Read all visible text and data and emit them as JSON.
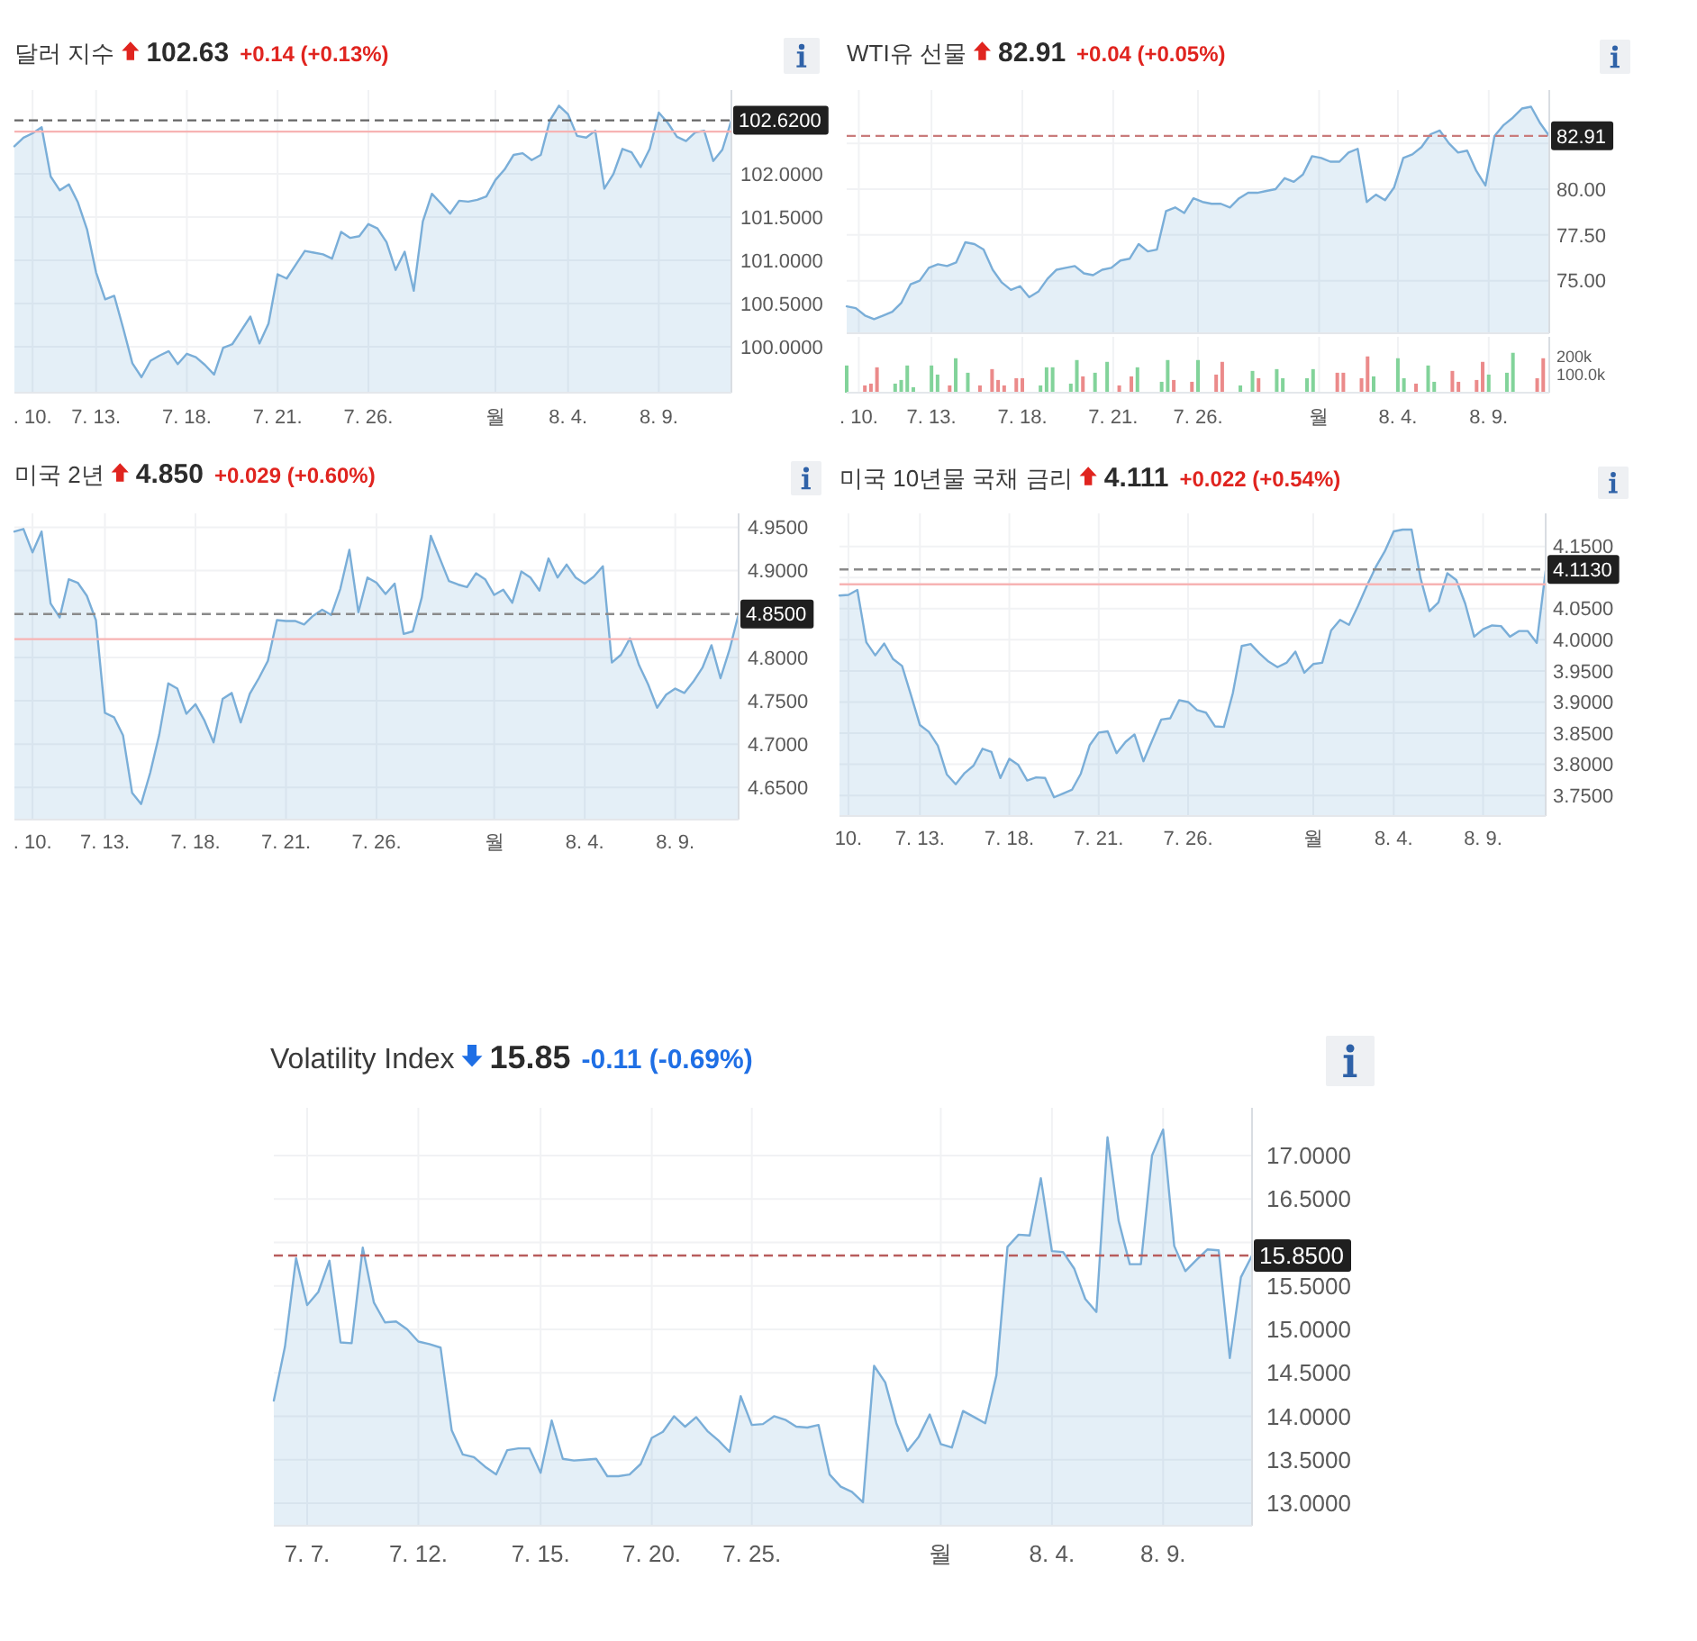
{
  "chart_data": [
    {
      "type": "area",
      "title": "달러 지수",
      "subtitle": "102.63",
      "annotations": [
        "+0.14 (+0.13%)"
      ],
      "color": "#7aaed8",
      "grid": true,
      "ylim": [
        99.47,
        102.97
      ],
      "categories": [
        null,
        null,
        ". 10.",
        null,
        null,
        null,
        null,
        null,
        null,
        "7. 13.",
        null,
        null,
        null,
        null,
        null,
        null,
        null,
        null,
        null,
        "7. 18.",
        null,
        null,
        null,
        null,
        null,
        null,
        null,
        null,
        null,
        "7. 21.",
        null,
        null,
        null,
        null,
        null,
        null,
        null,
        null,
        null,
        "7. 26.",
        null,
        null,
        null,
        null,
        null,
        null,
        null,
        null,
        null,
        null,
        null,
        null,
        null,
        "월",
        null,
        null,
        null,
        null,
        null,
        null,
        null,
        "8. 4.",
        null,
        null,
        null,
        null,
        null,
        null,
        null,
        null,
        null,
        "8. 9.",
        null,
        null,
        null,
        null,
        null,
        null,
        null,
        null
      ],
      "yticks": [
        {
          "value": 100,
          "label": "100.0000"
        },
        {
          "value": 100.5,
          "label": "100.5000"
        },
        {
          "value": 101,
          "label": "101.0000"
        },
        {
          "value": 101.5,
          "label": "101.5000"
        },
        {
          "value": 102,
          "label": "102.0000"
        }
      ],
      "ref_lines": [
        {
          "axis": "y",
          "value": 102.62,
          "label": "102.6200",
          "color": "#666666",
          "line_style": "dashed"
        },
        {
          "axis": "y",
          "value": 102.49,
          "color": "#f7b3b3",
          "line_style": "solid"
        }
      ],
      "values": [
        102.32,
        102.42,
        102.47,
        102.54,
        101.97,
        101.81,
        101.88,
        101.67,
        101.36,
        100.86,
        100.55,
        100.59,
        100.21,
        99.81,
        99.65,
        99.84,
        99.9,
        99.95,
        99.8,
        99.92,
        99.88,
        99.79,
        99.68,
        99.99,
        100.03,
        100.19,
        100.35,
        100.04,
        100.27,
        100.84,
        100.79,
        100.95,
        101.11,
        101.09,
        101.07,
        101.02,
        101.33,
        101.26,
        101.28,
        101.42,
        101.37,
        101.21,
        100.89,
        101.1,
        100.65,
        101.45,
        101.77,
        101.66,
        101.54,
        101.69,
        101.68,
        101.7,
        101.74,
        101.93,
        102.05,
        102.22,
        102.24,
        102.16,
        102.22,
        102.62,
        102.79,
        102.69,
        102.44,
        102.42,
        102.5,
        101.83,
        102.0,
        102.29,
        102.25,
        102.08,
        102.29,
        102.71,
        102.59,
        102.43,
        102.38,
        102.48,
        102.5,
        102.15,
        102.28,
        102.62
      ]
    },
    {
      "type": "area",
      "title": "WTI유 선물",
      "subtitle": "82.91",
      "annotations": [
        "+0.04 (+0.05%)"
      ],
      "color": "#7aaed8",
      "grid": true,
      "tick_labels": "y",
      "ylim": [
        72.13,
        85.41
      ],
      "categories": [
        null,
        null,
        null,
        null,
        null,
        null,
        null,
        null,
        null,
        null,
        null,
        null,
        null,
        null,
        null,
        null,
        null,
        null,
        null,
        null,
        null,
        null,
        null,
        null,
        null,
        null,
        null,
        null,
        null,
        null,
        null,
        null,
        null,
        null,
        null,
        null,
        null,
        null,
        null,
        null,
        null,
        null,
        null,
        null,
        null,
        null,
        null,
        null,
        null,
        null,
        null,
        null,
        null,
        null,
        null,
        null,
        null,
        null,
        null,
        null,
        null,
        null,
        null,
        null,
        null,
        null,
        null,
        null,
        null,
        null,
        null,
        null,
        null,
        null,
        null,
        null,
        null,
        null
      ],
      "yticks": [
        {
          "value": 75,
          "label": "75.00"
        },
        {
          "value": 77.5,
          "label": "77.50"
        },
        {
          "value": 80,
          "label": "80.00"
        },
        {
          "value": 82.5,
          "label": null
        }
      ],
      "ref_lines": [
        {
          "axis": "y",
          "value": 82.91,
          "label": "82.91",
          "color": "#c97b7b",
          "line_style": "dashed"
        }
      ],
      "values": [
        73.6,
        73.5,
        73.1,
        72.9,
        73.1,
        73.3,
        73.8,
        74.8,
        75.0,
        75.7,
        75.9,
        75.8,
        76.0,
        77.1,
        77.0,
        76.7,
        75.6,
        74.9,
        74.5,
        74.7,
        74.1,
        74.4,
        75.1,
        75.6,
        75.7,
        75.8,
        75.4,
        75.3,
        75.6,
        75.7,
        76.1,
        76.2,
        77.0,
        76.6,
        76.7,
        78.8,
        79.0,
        78.7,
        79.5,
        79.3,
        79.2,
        79.2,
        79.0,
        79.5,
        79.8,
        79.8,
        79.9,
        80.0,
        80.6,
        80.4,
        80.8,
        81.8,
        81.7,
        81.5,
        81.5,
        82.0,
        82.2,
        79.3,
        79.7,
        79.4,
        80.1,
        81.7,
        81.9,
        82.3,
        83.0,
        83.2,
        82.5,
        82.0,
        82.1,
        81.0,
        80.2,
        82.9,
        83.5,
        83.9,
        84.4,
        84.5,
        83.6,
        82.9
      ]
    },
    {
      "type": "bar",
      "grid": "x",
      "ylim": [
        0,
        308000
      ],
      "categories": [
        null,
        null,
        ". 10.",
        null,
        null,
        null,
        null,
        null,
        null,
        null,
        null,
        null,
        null,
        null,
        "7. 13.",
        null,
        null,
        null,
        null,
        null,
        null,
        null,
        null,
        null,
        null,
        null,
        null,
        null,
        null,
        "7. 18.",
        null,
        null,
        null,
        null,
        null,
        null,
        null,
        null,
        null,
        null,
        null,
        null,
        null,
        null,
        "7. 21.",
        null,
        null,
        null,
        null,
        null,
        null,
        null,
        null,
        null,
        null,
        null,
        null,
        null,
        "7. 26.",
        null,
        null,
        null,
        null,
        null,
        null,
        null,
        null,
        null,
        null,
        null,
        null,
        null,
        null,
        null,
        null,
        null,
        null,
        null,
        "월",
        null,
        null,
        null,
        null,
        null,
        null,
        null,
        null,
        null,
        null,
        null,
        null,
        "8. 4.",
        null,
        null,
        null,
        null,
        null,
        null,
        null,
        null,
        null,
        null,
        null,
        null,
        null,
        null,
        "8. 9.",
        null,
        null,
        null,
        null,
        null,
        null,
        null,
        null,
        null,
        null
      ],
      "yticks": [
        {
          "value": 100000,
          "label": "100.0k"
        },
        {
          "value": 200000,
          "label": "200k"
        }
      ],
      "values": [
        150000,
        null,
        null,
        40000,
        50000,
        140000,
        null,
        null,
        50000,
        70000,
        150000,
        30000,
        null,
        null,
        150000,
        100000,
        null,
        40000,
        190000,
        null,
        110000,
        null,
        40000,
        null,
        130000,
        70000,
        40000,
        null,
        80000,
        80000,
        null,
        null,
        40000,
        140000,
        140000,
        null,
        null,
        50000,
        180000,
        90000,
        null,
        110000,
        null,
        170000,
        null,
        40000,
        null,
        90000,
        140000,
        null,
        null,
        null,
        60000,
        180000,
        70000,
        null,
        null,
        60000,
        180000,
        null,
        null,
        100000,
        170000,
        null,
        null,
        40000,
        null,
        120000,
        80000,
        null,
        null,
        130000,
        80000,
        null,
        null,
        null,
        80000,
        130000,
        null,
        null,
        null,
        110000,
        110000,
        null,
        null,
        80000,
        200000,
        90000,
        null,
        null,
        null,
        190000,
        80000,
        null,
        50000,
        null,
        150000,
        60000,
        null,
        null,
        120000,
        60000,
        null,
        null,
        70000,
        170000,
        100000,
        null,
        null,
        110000,
        220000,
        null,
        null,
        null,
        80000,
        190000,
        null
      ],
      "colors": [
        "#82d39a",
        null,
        null,
        "#eb8a8a",
        "#eb8a8a",
        "#eb8a8a",
        null,
        null,
        "#82d39a",
        "#82d39a",
        "#82d39a",
        "#82d39a",
        null,
        null,
        "#82d39a",
        "#82d39a",
        null,
        "#eb8a8a",
        "#82d39a",
        null,
        "#82d39a",
        null,
        "#eb8a8a",
        null,
        "#eb8a8a",
        "#eb8a8a",
        "#eb8a8a",
        null,
        "#eb8a8a",
        "#eb8a8a",
        null,
        null,
        "#82d39a",
        "#82d39a",
        "#82d39a",
        null,
        null,
        "#82d39a",
        "#82d39a",
        "#eb8a8a",
        null,
        "#82d39a",
        null,
        "#82d39a",
        null,
        "#eb8a8a",
        null,
        "#eb8a8a",
        "#82d39a",
        null,
        null,
        null,
        "#82d39a",
        "#82d39a",
        "#eb8a8a",
        null,
        null,
        "#eb8a8a",
        "#82d39a",
        null,
        null,
        "#eb8a8a",
        "#eb8a8a",
        null,
        null,
        "#82d39a",
        null,
        "#82d39a",
        "#eb8a8a",
        null,
        null,
        "#82d39a",
        "#82d39a",
        null,
        null,
        null,
        "#82d39a",
        "#82d39a",
        null,
        null,
        null,
        "#eb8a8a",
        "#eb8a8a",
        null,
        null,
        "#eb8a8a",
        "#eb8a8a",
        "#82d39a",
        null,
        null,
        null,
        "#82d39a",
        "#82d39a",
        null,
        "#eb8a8a",
        null,
        "#82d39a",
        "#82d39a",
        null,
        null,
        "#eb8a8a",
        "#eb8a8a",
        null,
        null,
        "#eb8a8a",
        "#eb8a8a",
        "#82d39a",
        null,
        null,
        "#82d39a",
        "#82d39a",
        null,
        null,
        null,
        "#eb8a8a",
        "#eb8a8a",
        null
      ]
    },
    {
      "type": "area",
      "title": "미국 2년",
      "subtitle": "4.850",
      "annotations": [
        "+0.029 (+0.60%)"
      ],
      "color": "#7aaed8",
      "grid": true,
      "ylim": [
        4.613,
        4.966
      ],
      "categories": [
        null,
        null,
        ". 10.",
        null,
        null,
        null,
        null,
        null,
        null,
        null,
        "7. 13.",
        null,
        null,
        null,
        null,
        null,
        null,
        null,
        null,
        null,
        "7. 18.",
        null,
        null,
        null,
        null,
        null,
        null,
        null,
        null,
        null,
        "7. 21.",
        null,
        null,
        null,
        null,
        null,
        null,
        null,
        null,
        null,
        "7. 26.",
        null,
        null,
        null,
        null,
        null,
        null,
        null,
        null,
        null,
        null,
        null,
        null,
        "월",
        null,
        null,
        null,
        null,
        null,
        null,
        null,
        null,
        null,
        "8. 4.",
        null,
        null,
        null,
        null,
        null,
        null,
        null,
        null,
        null,
        "8. 9.",
        null,
        null,
        null,
        null,
        null,
        null,
        null
      ],
      "yticks": [
        {
          "value": 4.65,
          "label": "4.6500"
        },
        {
          "value": 4.7,
          "label": "4.7000"
        },
        {
          "value": 4.75,
          "label": "4.7500"
        },
        {
          "value": 4.8,
          "label": "4.8000"
        },
        {
          "value": 4.9,
          "label": "4.9000"
        },
        {
          "value": 4.95,
          "label": "4.9500"
        }
      ],
      "ref_lines": [
        {
          "axis": "y",
          "value": 4.85,
          "label": "4.8500",
          "color": "#8a8a8a",
          "line_style": "dashed"
        },
        {
          "axis": "y",
          "value": 4.821,
          "color": "#f7b3b3",
          "line_style": "solid"
        }
      ],
      "values": [
        4.945,
        4.948,
        4.921,
        4.945,
        4.862,
        4.846,
        4.89,
        4.886,
        4.871,
        4.843,
        4.736,
        4.731,
        4.71,
        4.644,
        4.631,
        4.667,
        4.711,
        4.77,
        4.764,
        4.735,
        4.746,
        4.727,
        4.702,
        4.752,
        4.759,
        4.725,
        4.758,
        4.776,
        4.796,
        4.843,
        4.842,
        4.842,
        4.838,
        4.848,
        4.855,
        4.849,
        4.879,
        4.924,
        4.852,
        4.892,
        4.886,
        4.873,
        4.885,
        4.827,
        4.83,
        4.869,
        4.94,
        4.914,
        4.888,
        4.884,
        4.881,
        4.897,
        4.89,
        4.872,
        4.878,
        4.863,
        4.899,
        4.892,
        4.877,
        4.914,
        4.892,
        4.907,
        4.892,
        4.885,
        4.893,
        4.905,
        4.794,
        4.803,
        4.822,
        4.791,
        4.769,
        4.742,
        4.757,
        4.764,
        4.759,
        4.772,
        4.788,
        4.814,
        4.776,
        4.809,
        4.85
      ]
    },
    {
      "type": "area",
      "title": "미국 10년물 국채 금리",
      "subtitle": "4.111",
      "annotations": [
        "+0.022 (+0.54%)"
      ],
      "color": "#7aaed8",
      "grid": true,
      "ylim": [
        3.717,
        4.203
      ],
      "categories": [
        null,
        "10.",
        null,
        null,
        null,
        null,
        null,
        null,
        null,
        "7. 13.",
        null,
        null,
        null,
        null,
        null,
        null,
        null,
        null,
        null,
        "7. 18.",
        null,
        null,
        null,
        null,
        null,
        null,
        null,
        null,
        null,
        "7. 21.",
        null,
        null,
        null,
        null,
        null,
        null,
        null,
        null,
        null,
        "7. 26.",
        null,
        null,
        null,
        null,
        null,
        null,
        null,
        null,
        null,
        null,
        null,
        null,
        null,
        "월",
        null,
        null,
        null,
        null,
        null,
        null,
        null,
        null,
        "8. 4.",
        null,
        null,
        null,
        null,
        null,
        null,
        null,
        null,
        null,
        "8. 9.",
        null,
        null,
        null,
        null,
        null,
        null,
        null
      ],
      "yticks": [
        {
          "value": 3.75,
          "label": "3.7500"
        },
        {
          "value": 3.8,
          "label": "3.8000"
        },
        {
          "value": 3.85,
          "label": "3.8500"
        },
        {
          "value": 3.9,
          "label": "3.9000"
        },
        {
          "value": 3.95,
          "label": "3.9500"
        },
        {
          "value": 4.0,
          "label": "4.0000"
        },
        {
          "value": 4.05,
          "label": "4.0500"
        },
        {
          "value": 4.1,
          "label": null
        },
        {
          "value": 4.15,
          "label": "4.1500"
        }
      ],
      "ref_lines": [
        {
          "axis": "y",
          "value": 4.113,
          "label": "4.1130",
          "color": "#8a8a8a",
          "line_style": "dashed"
        },
        {
          "axis": "y",
          "value": 4.089,
          "color": "#f7b3b3",
          "line_style": "solid"
        }
      ],
      "values": [
        4.071,
        4.072,
        4.08,
        3.996,
        3.975,
        3.994,
        3.969,
        3.958,
        3.911,
        3.863,
        3.852,
        3.83,
        3.784,
        3.768,
        3.786,
        3.798,
        3.825,
        3.82,
        3.778,
        3.809,
        3.799,
        3.774,
        3.779,
        3.778,
        3.747,
        3.753,
        3.759,
        3.785,
        3.831,
        3.851,
        3.853,
        3.818,
        3.836,
        3.848,
        3.805,
        3.839,
        3.872,
        3.874,
        3.903,
        3.9,
        3.887,
        3.883,
        3.861,
        3.86,
        3.914,
        3.99,
        3.993,
        3.978,
        3.965,
        3.956,
        3.963,
        3.981,
        3.947,
        3.961,
        3.963,
        4.015,
        4.032,
        4.024,
        4.054,
        4.087,
        4.117,
        4.142,
        4.174,
        4.177,
        4.177,
        4.099,
        4.046,
        4.06,
        4.107,
        4.096,
        4.058,
        4.005,
        4.017,
        4.023,
        4.022,
        4.005,
        4.014,
        4.014,
        3.995,
        4.111
      ]
    },
    {
      "type": "area",
      "title": "Volatility Index",
      "subtitle": "15.85",
      "annotations": [
        "-0.11 (-0.69%)"
      ],
      "color": "#7aaed8",
      "grid": true,
      "ylim": [
        12.74,
        17.55
      ],
      "categories": [
        null,
        null,
        null,
        "7. 7.",
        null,
        null,
        null,
        null,
        null,
        null,
        null,
        null,
        null,
        "7. 12.",
        null,
        null,
        null,
        null,
        null,
        null,
        null,
        null,
        null,
        null,
        "7. 15.",
        null,
        null,
        null,
        null,
        null,
        null,
        null,
        null,
        null,
        "7. 20.",
        null,
        null,
        null,
        null,
        null,
        null,
        null,
        null,
        "7. 25.",
        null,
        null,
        null,
        null,
        null,
        null,
        null,
        null,
        null,
        null,
        null,
        null,
        null,
        null,
        null,
        null,
        "월",
        null,
        null,
        null,
        null,
        null,
        null,
        null,
        null,
        null,
        "8. 4.",
        null,
        null,
        null,
        null,
        null,
        null,
        null,
        null,
        null,
        "8. 9.",
        null,
        null,
        null,
        null,
        null,
        null,
        null,
        null
      ],
      "yticks": [
        {
          "value": 13,
          "label": "13.0000"
        },
        {
          "value": 13.5,
          "label": "13.5000"
        },
        {
          "value": 14,
          "label": "14.0000"
        },
        {
          "value": 14.5,
          "label": "14.5000"
        },
        {
          "value": 15,
          "label": "15.0000"
        },
        {
          "value": 15.5,
          "label": "15.5000"
        },
        {
          "value": 16,
          "label": null
        },
        {
          "value": 16.5,
          "label": "16.5000"
        },
        {
          "value": 17,
          "label": "17.0000"
        }
      ],
      "ref_lines": [
        {
          "axis": "y",
          "value": 15.85,
          "label": "15.8500",
          "color": "#b85c5c",
          "line_style": "dashed"
        }
      ],
      "values": [
        14.18,
        14.8,
        15.82,
        15.28,
        15.43,
        15.79,
        14.85,
        14.84,
        15.94,
        15.31,
        15.08,
        15.09,
        15.0,
        14.86,
        14.83,
        14.79,
        13.84,
        13.56,
        13.53,
        13.42,
        13.33,
        13.61,
        13.63,
        13.63,
        13.35,
        13.95,
        13.51,
        13.49,
        13.5,
        13.51,
        13.31,
        13.31,
        13.33,
        13.45,
        13.75,
        13.82,
        14.0,
        13.88,
        13.99,
        13.83,
        13.72,
        13.59,
        14.23,
        13.9,
        13.91,
        14.0,
        13.96,
        13.88,
        13.87,
        13.9,
        13.33,
        13.19,
        13.13,
        13.01,
        14.58,
        14.39,
        13.92,
        13.6,
        13.76,
        14.02,
        13.68,
        13.64,
        14.06,
        13.99,
        13.92,
        14.47,
        15.95,
        16.09,
        16.08,
        16.74,
        15.9,
        15.89,
        15.7,
        15.35,
        15.2,
        17.21,
        16.25,
        15.75,
        15.75,
        17.0,
        17.3,
        15.96,
        15.67,
        15.8,
        15.92,
        15.91,
        14.67,
        15.6,
        15.85
      ]
    }
  ]
}
